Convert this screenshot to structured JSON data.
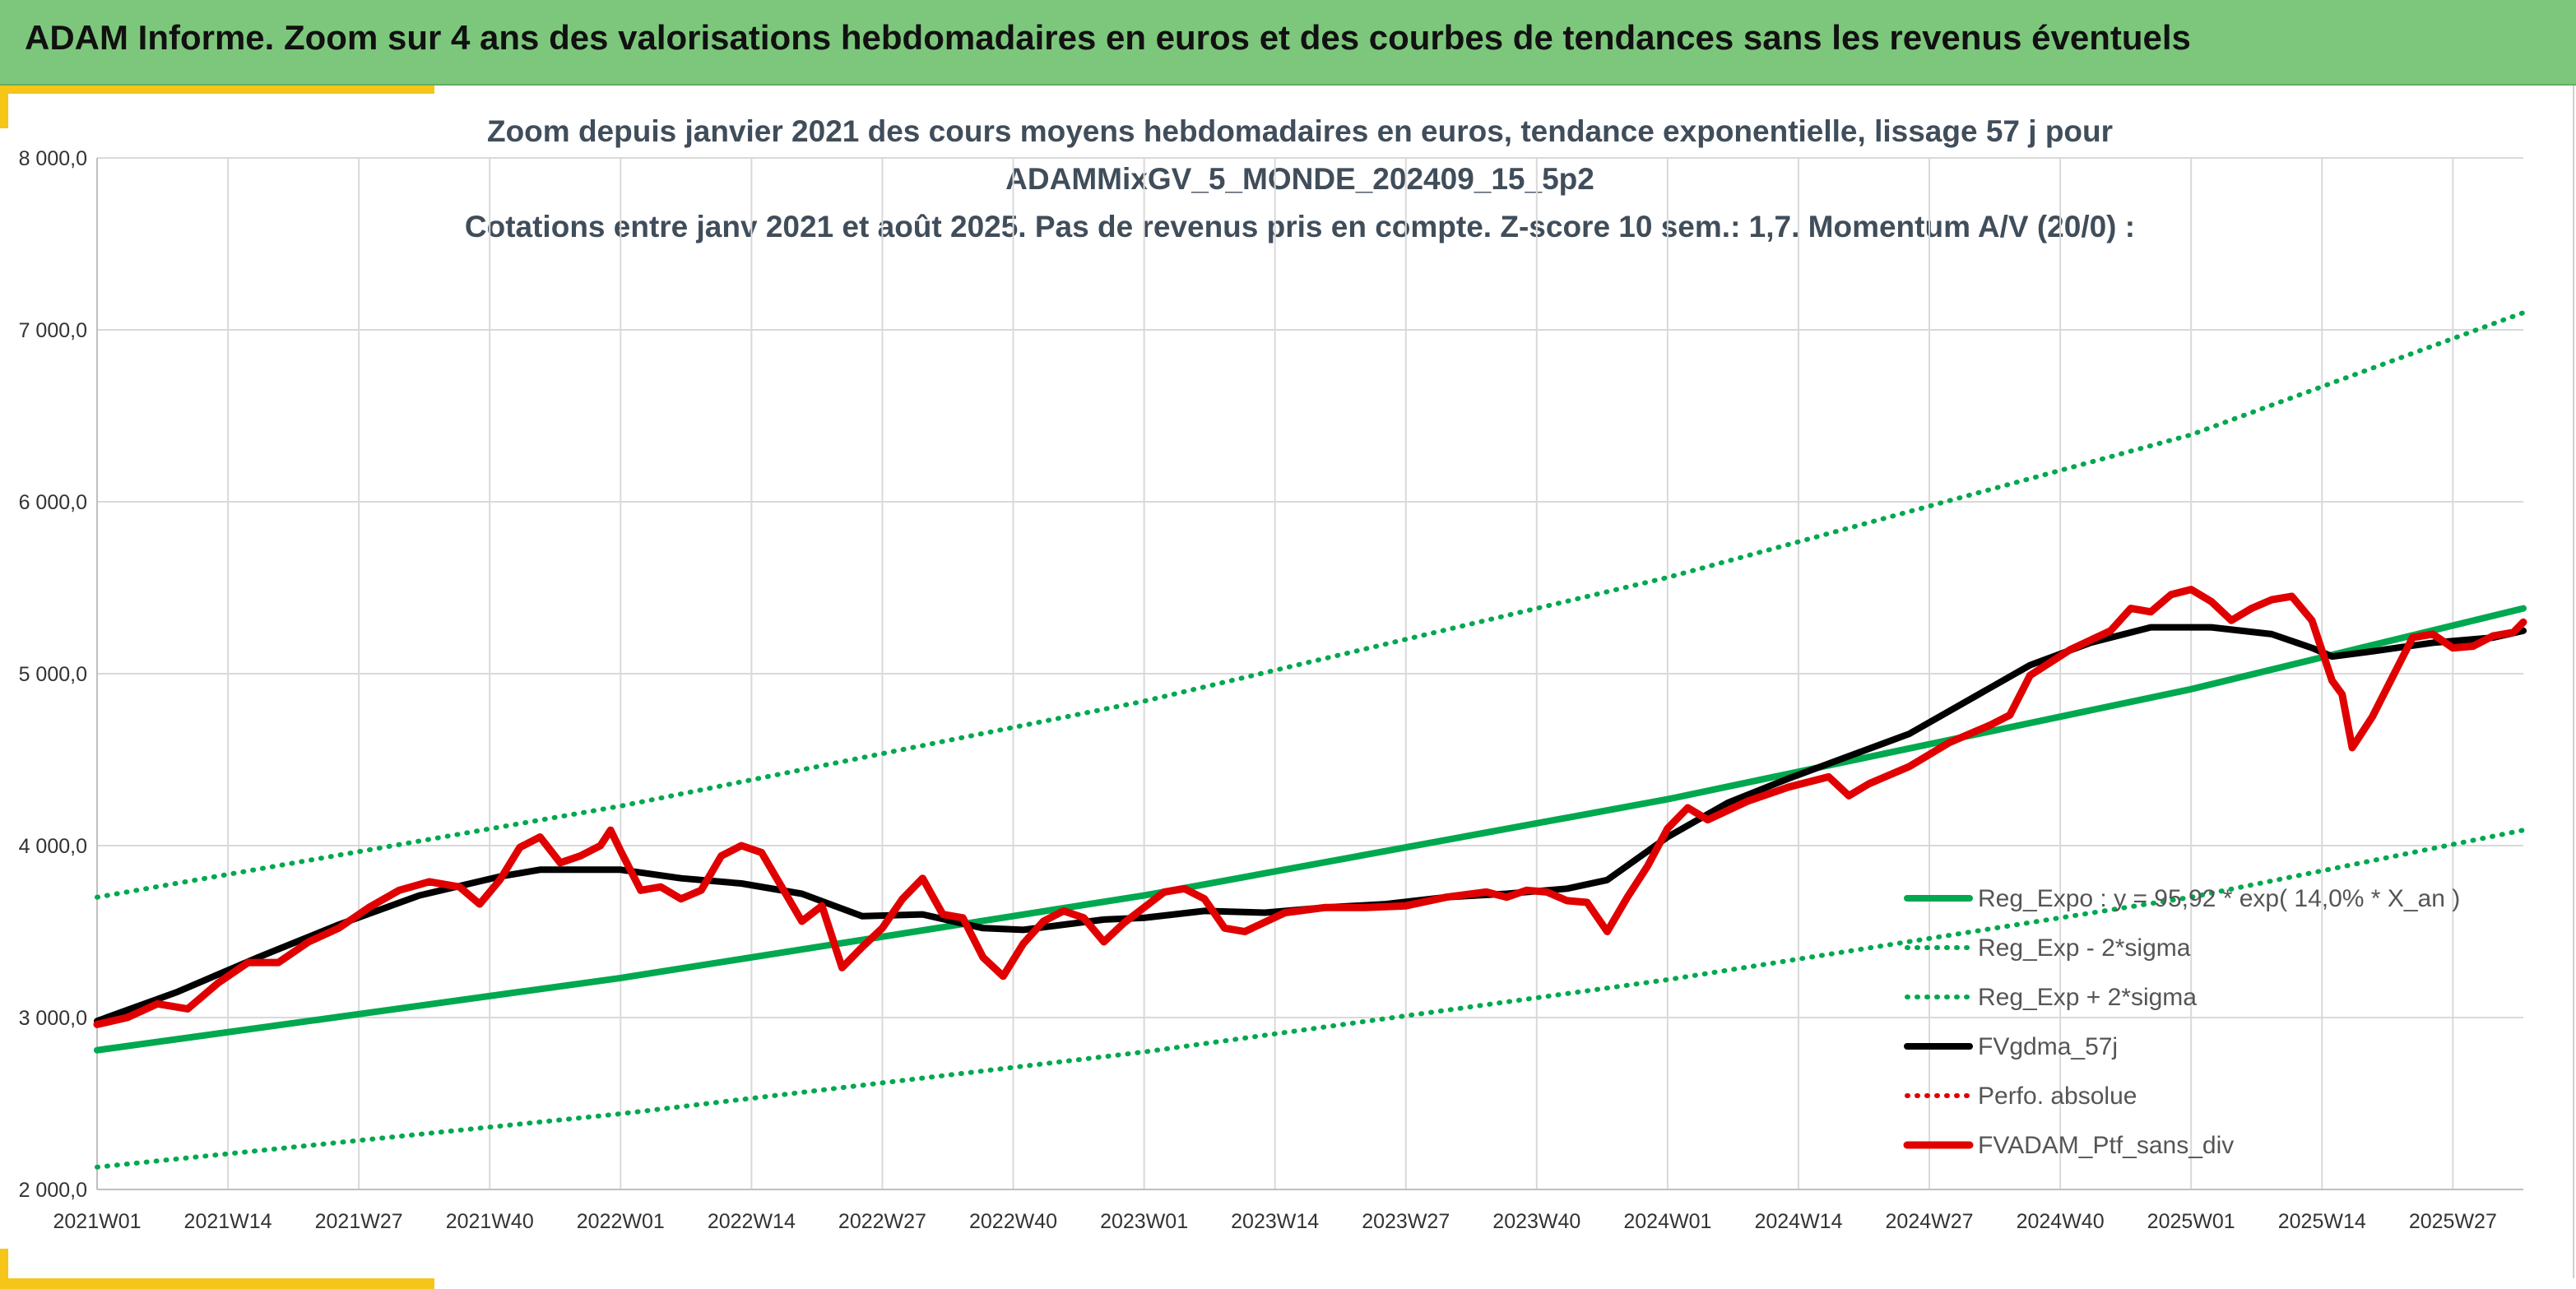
{
  "banner": {
    "title": "ADAM Informe. Zoom sur 4 ans des valorisations hebdomadaires en euros et des courbes de tendances sans les revenus éventuels",
    "color": "#7dc77c",
    "accent_color": "#f5c518"
  },
  "chart_data": {
    "type": "line",
    "title_lines": [
      "Zoom depuis janvier 2021 des cours moyens hebdomadaires en euros, tendance exponentielle, lissage 57 j pour",
      "ADAMMixGV_5_MONDE_202409_15_5p2",
      "Cotations entre janv 2021 et août 2025. Pas de revenus pris en compte. Z-score 10 sem.: 1,7. Momentum A/V (20/0) :"
    ],
    "xlabel": "",
    "ylabel": "",
    "ylim": [
      2000,
      8000
    ],
    "y_ticks": [
      2000,
      3000,
      4000,
      5000,
      6000,
      7000,
      8000
    ],
    "y_tick_labels": [
      "2 000,0",
      "3 000,0",
      "4 000,0",
      "5 000,0",
      "6 000,0",
      "7 000,0",
      "8 000,0"
    ],
    "x_unit": "weeks since 2021W01",
    "x_range": [
      0,
      241
    ],
    "x_ticks": [
      0,
      13,
      26,
      39,
      52,
      65,
      78,
      91,
      104,
      117,
      130,
      143,
      156,
      169,
      182,
      195,
      208,
      221,
      234
    ],
    "x_tick_labels": [
      "2021W01",
      "2021W14",
      "2021W27",
      "2021W40",
      "2022W01",
      "2022W14",
      "2022W27",
      "2022W40",
      "2023W01",
      "2023W14",
      "2023W27",
      "2023W40",
      "2024W01",
      "2024W14",
      "2024W27",
      "2024W40",
      "2025W01",
      "2025W14",
      "2025W27"
    ],
    "grid": true,
    "legend_position": "bottom-right",
    "series": [
      {
        "name": "Reg_Expo : y = 95,92 * exp( 14,0% *  X_an )",
        "color": "#00a84f",
        "style": "solid",
        "x": [
          0,
          52,
          104,
          156,
          208,
          241
        ],
        "y": [
          2810,
          3230,
          3710,
          4270,
          4910,
          5380
        ]
      },
      {
        "name": "Reg_Exp - 2*sigma",
        "color": "#00a84f",
        "style": "dotted",
        "x": [
          0,
          52,
          104,
          156,
          208,
          241
        ],
        "y": [
          2130,
          2440,
          2800,
          3220,
          3700,
          4090
        ]
      },
      {
        "name": "Reg_Exp + 2*sigma",
        "color": "#00a84f",
        "style": "dotted",
        "x": [
          0,
          52,
          104,
          156,
          208,
          241
        ],
        "y": [
          3700,
          4230,
          4840,
          5560,
          6390,
          7100
        ]
      },
      {
        "name": "FVgdma_57j",
        "color": "#000000",
        "style": "solid",
        "x": [
          0,
          8,
          16,
          24,
          32,
          40,
          44,
          48,
          52,
          58,
          64,
          70,
          76,
          82,
          88,
          92,
          96,
          100,
          104,
          110,
          116,
          122,
          128,
          134,
          140,
          146,
          150,
          156,
          162,
          168,
          174,
          180,
          186,
          192,
          198,
          204,
          210,
          216,
          220,
          222,
          226,
          232,
          238,
          241
        ],
        "y": [
          2980,
          3150,
          3350,
          3540,
          3710,
          3820,
          3860,
          3860,
          3860,
          3810,
          3780,
          3720,
          3590,
          3600,
          3520,
          3510,
          3540,
          3570,
          3580,
          3620,
          3610,
          3640,
          3660,
          3700,
          3720,
          3750,
          3800,
          4050,
          4250,
          4390,
          4520,
          4650,
          4850,
          5050,
          5180,
          5270,
          5270,
          5230,
          5150,
          5100,
          5130,
          5180,
          5210,
          5250
        ]
      },
      {
        "name": "Perfo. absolue",
        "color": "#e00000",
        "style": "dotted",
        "x": [],
        "y": []
      },
      {
        "name": "FVADAM_Ptf_sans_div",
        "color": "#e00000",
        "style": "solid",
        "x": [
          0,
          3,
          6,
          9,
          12,
          15,
          18,
          21,
          24,
          27,
          30,
          33,
          36,
          38,
          40,
          42,
          44,
          46,
          48,
          50,
          51,
          52,
          54,
          56,
          58,
          60,
          62,
          64,
          66,
          68,
          70,
          72,
          74,
          76,
          78,
          80,
          82,
          84,
          86,
          88,
          90,
          92,
          94,
          96,
          98,
          100,
          102,
          104,
          106,
          108,
          110,
          112,
          114,
          118,
          122,
          126,
          130,
          134,
          138,
          140,
          142,
          144,
          146,
          148,
          150,
          152,
          154,
          156,
          158,
          160,
          164,
          168,
          172,
          174,
          176,
          180,
          184,
          188,
          190,
          192,
          196,
          200,
          202,
          204,
          206,
          208,
          210,
          212,
          214,
          216,
          218,
          220,
          222,
          223,
          224,
          226,
          228,
          230,
          232,
          234,
          236,
          238,
          240,
          241
        ],
        "y": [
          2960,
          3000,
          3080,
          3050,
          3200,
          3320,
          3320,
          3440,
          3520,
          3640,
          3740,
          3790,
          3760,
          3660,
          3800,
          3990,
          4050,
          3900,
          3940,
          4000,
          4090,
          3970,
          3740,
          3760,
          3690,
          3740,
          3940,
          4000,
          3960,
          3760,
          3560,
          3650,
          3290,
          3410,
          3520,
          3690,
          3810,
          3600,
          3580,
          3350,
          3240,
          3430,
          3560,
          3620,
          3580,
          3440,
          3550,
          3640,
          3730,
          3750,
          3690,
          3520,
          3500,
          3610,
          3640,
          3640,
          3650,
          3700,
          3730,
          3700,
          3740,
          3730,
          3680,
          3670,
          3500,
          3700,
          3880,
          4100,
          4220,
          4150,
          4260,
          4340,
          4400,
          4290,
          4360,
          4460,
          4600,
          4700,
          4760,
          4990,
          5140,
          5250,
          5380,
          5360,
          5460,
          5490,
          5420,
          5310,
          5380,
          5430,
          5450,
          5310,
          4960,
          4880,
          4570,
          4750,
          4980,
          5210,
          5230,
          5150,
          5160,
          5220,
          5240,
          5300
        ]
      }
    ]
  }
}
